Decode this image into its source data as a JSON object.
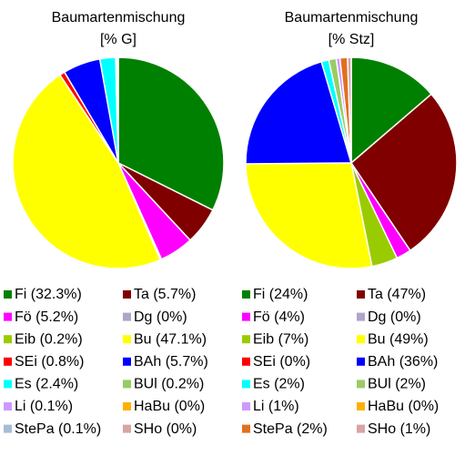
{
  "chart_data": [
    {
      "type": "pie",
      "title": "Baumartenmischung",
      "subtitle": "[% G]",
      "value_labels": [
        "Fi (32.3%)",
        "Ta (5.7%)",
        "Fö (5.2%)",
        "Dg (0%)",
        "Eib (0.2%)",
        "Bu (47.1%)",
        "SEi (0.8%)",
        "BAh (5.7%)",
        "Es (2.4%)",
        "BUl (0.2%)",
        "Li (0.1%)",
        "HaBu (0%)",
        "StePa (0.1%)",
        "SHo (0%)"
      ],
      "values": [
        32.3,
        5.7,
        5.2,
        0,
        0.2,
        47.1,
        0.8,
        5.7,
        2.4,
        0.2,
        0.1,
        0,
        0.1,
        0
      ],
      "colors": [
        "#008000",
        "#800000",
        "#ff00ff",
        "#b0a4c8",
        "#99cc00",
        "#ffff00",
        "#ff0000",
        "#0000ff",
        "#00ffff",
        "#99cc66",
        "#cc99ff",
        "#ffb000",
        "#a8bcd4",
        "#d8a4a4"
      ]
    },
    {
      "type": "pie",
      "title": "Baumartenmischung",
      "subtitle": "[% Stz]",
      "value_labels": [
        "Fi (24%)",
        "Ta (47%)",
        "Fö (4%)",
        "Dg (0%)",
        "Eib (7%)",
        "Bu (49%)",
        "SEi (0%)",
        "BAh (36%)",
        "Es (2%)",
        "BUl (2%)",
        "Li (1%)",
        "HaBu (0%)",
        "StePa (2%)",
        "SHo (1%)"
      ],
      "values": [
        24,
        47,
        4,
        0,
        7,
        49,
        0,
        36,
        2,
        2,
        1,
        0,
        2,
        1
      ],
      "colors": [
        "#008000",
        "#800000",
        "#ff00ff",
        "#b0a4c8",
        "#99cc00",
        "#ffff00",
        "#ff0000",
        "#0000ff",
        "#00ffff",
        "#99cc66",
        "#cc99ff",
        "#ffb000",
        "#e07020",
        "#d8a4a4"
      ]
    }
  ]
}
